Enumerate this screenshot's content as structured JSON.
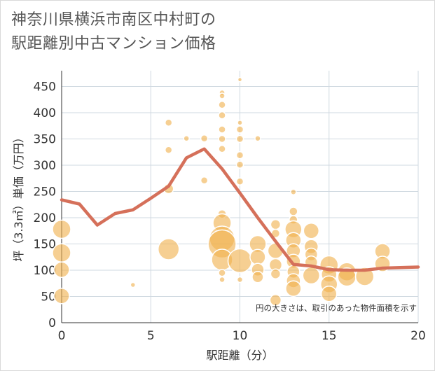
{
  "title_line1": "神奈川県横浜市南区中村町の",
  "title_line2": "駅距離別中古マンション価格",
  "chart_data": {
    "type": "scatter",
    "title": "神奈川県横浜市南区中村町の駅距離別中古マンション価格",
    "xlabel": "駅距離（分）",
    "ylabel": "坪（3.3㎡）単価（万円）",
    "xlim": [
      0,
      20
    ],
    "ylim": [
      0,
      480
    ],
    "x_ticks": [
      0,
      5,
      10,
      15,
      20
    ],
    "y_ticks": [
      0,
      50,
      100,
      150,
      200,
      250,
      300,
      350,
      400,
      450
    ],
    "grid": true,
    "note": "円の大きさは、取引のあった物件面積を示す",
    "colors": {
      "bubble": "#f0b24f",
      "line": "#d5705a",
      "grid": "#cfd8e0"
    },
    "bubbles": [
      {
        "x": 0,
        "y": 178,
        "r": 13
      },
      {
        "x": 0,
        "y": 133,
        "r": 13
      },
      {
        "x": 0,
        "y": 101,
        "r": 11
      },
      {
        "x": 0,
        "y": 51,
        "r": 11
      },
      {
        "x": 4,
        "y": 72,
        "r": 3.5
      },
      {
        "x": 6,
        "y": 381,
        "r": 5
      },
      {
        "x": 6,
        "y": 329,
        "r": 5
      },
      {
        "x": 6,
        "y": 255,
        "r": 7
      },
      {
        "x": 6,
        "y": 140,
        "r": 15
      },
      {
        "x": 7,
        "y": 351,
        "r": 4
      },
      {
        "x": 8,
        "y": 351,
        "r": 5
      },
      {
        "x": 8,
        "y": 271,
        "r": 5
      },
      {
        "x": 9,
        "y": 438,
        "r": 4
      },
      {
        "x": 9,
        "y": 432,
        "r": 4
      },
      {
        "x": 9,
        "y": 415,
        "r": 5
      },
      {
        "x": 9,
        "y": 395,
        "r": 5
      },
      {
        "x": 9,
        "y": 368,
        "r": 5
      },
      {
        "x": 9,
        "y": 350,
        "r": 5
      },
      {
        "x": 9,
        "y": 331,
        "r": 5
      },
      {
        "x": 9,
        "y": 207,
        "r": 6
      },
      {
        "x": 9,
        "y": 190,
        "r": 13
      },
      {
        "x": 9,
        "y": 160,
        "r": 18
      },
      {
        "x": 9,
        "y": 150,
        "r": 20
      },
      {
        "x": 9,
        "y": 120,
        "r": 15
      },
      {
        "x": 9,
        "y": 95,
        "r": 5
      },
      {
        "x": 9,
        "y": 82,
        "r": 4
      },
      {
        "x": 10,
        "y": 463,
        "r": 3
      },
      {
        "x": 10,
        "y": 381,
        "r": 3.5
      },
      {
        "x": 10,
        "y": 368,
        "r": 5
      },
      {
        "x": 10,
        "y": 350,
        "r": 5
      },
      {
        "x": 10,
        "y": 319,
        "r": 5
      },
      {
        "x": 10,
        "y": 301,
        "r": 5
      },
      {
        "x": 10,
        "y": 269,
        "r": 5
      },
      {
        "x": 10,
        "y": 118,
        "r": 17
      },
      {
        "x": 10,
        "y": 82,
        "r": 4
      },
      {
        "x": 11,
        "y": 351,
        "r": 4
      },
      {
        "x": 11,
        "y": 150,
        "r": 12
      },
      {
        "x": 11,
        "y": 125,
        "r": 11
      },
      {
        "x": 11,
        "y": 101,
        "r": 9
      },
      {
        "x": 11,
        "y": 87,
        "r": 8
      },
      {
        "x": 12,
        "y": 187,
        "r": 7
      },
      {
        "x": 12,
        "y": 170,
        "r": 6
      },
      {
        "x": 12,
        "y": 137,
        "r": 11
      },
      {
        "x": 12,
        "y": 110,
        "r": 9
      },
      {
        "x": 12,
        "y": 93,
        "r": 7
      },
      {
        "x": 12,
        "y": 43,
        "r": 8
      },
      {
        "x": 13,
        "y": 249,
        "r": 4
      },
      {
        "x": 13,
        "y": 212,
        "r": 6
      },
      {
        "x": 13,
        "y": 196,
        "r": 6
      },
      {
        "x": 13,
        "y": 178,
        "r": 12
      },
      {
        "x": 13,
        "y": 157,
        "r": 11
      },
      {
        "x": 13,
        "y": 137,
        "r": 10
      },
      {
        "x": 13,
        "y": 117,
        "r": 10
      },
      {
        "x": 13,
        "y": 97,
        "r": 9
      },
      {
        "x": 13,
        "y": 80,
        "r": 10
      },
      {
        "x": 13,
        "y": 65,
        "r": 11
      },
      {
        "x": 14,
        "y": 175,
        "r": 11
      },
      {
        "x": 14,
        "y": 145,
        "r": 10
      },
      {
        "x": 14,
        "y": 130,
        "r": 9
      },
      {
        "x": 14,
        "y": 115,
        "r": 9
      },
      {
        "x": 14,
        "y": 90,
        "r": 12
      },
      {
        "x": 15,
        "y": 110,
        "r": 13
      },
      {
        "x": 15,
        "y": 92,
        "r": 11
      },
      {
        "x": 15,
        "y": 73,
        "r": 12
      },
      {
        "x": 15,
        "y": 55,
        "r": 11
      },
      {
        "x": 16,
        "y": 97,
        "r": 13
      },
      {
        "x": 16,
        "y": 87,
        "r": 13
      },
      {
        "x": 17,
        "y": 88,
        "r": 13
      },
      {
        "x": 18,
        "y": 136,
        "r": 11
      },
      {
        "x": 18,
        "y": 112,
        "r": 11
      }
    ],
    "line": [
      {
        "x": 0,
        "y": 234
      },
      {
        "x": 1,
        "y": 226
      },
      {
        "x": 2,
        "y": 186
      },
      {
        "x": 3,
        "y": 208
      },
      {
        "x": 4,
        "y": 215
      },
      {
        "x": 5,
        "y": 237
      },
      {
        "x": 6,
        "y": 260
      },
      {
        "x": 7,
        "y": 314
      },
      {
        "x": 8,
        "y": 331
      },
      {
        "x": 9,
        "y": 293
      },
      {
        "x": 10,
        "y": 247
      },
      {
        "x": 11,
        "y": 200
      },
      {
        "x": 12,
        "y": 155
      },
      {
        "x": 13,
        "y": 111
      },
      {
        "x": 14,
        "y": 108
      },
      {
        "x": 15,
        "y": 101
      },
      {
        "x": 16,
        "y": 100
      },
      {
        "x": 17,
        "y": 100
      },
      {
        "x": 18,
        "y": 104
      },
      {
        "x": 19,
        "y": 105
      },
      {
        "x": 20,
        "y": 106
      }
    ]
  }
}
